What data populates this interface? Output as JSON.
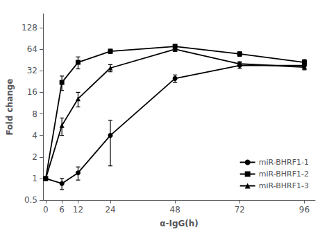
{
  "chart_data": {
    "type": "line",
    "xlabel": "α-IgG(h)",
    "ylabel": "Fold change",
    "x": [
      0,
      6,
      12,
      24,
      48,
      72,
      96
    ],
    "series": [
      {
        "name": "miR-BHRF1-1",
        "color": "#000000",
        "marker": "circle",
        "values": [
          1,
          0.85,
          1.2,
          4.0,
          25,
          38,
          38
        ],
        "yerr": [
          0.05,
          0.15,
          0.25,
          2.5,
          3.0,
          3.5,
          3.0
        ]
      },
      {
        "name": "miR-BHRF1-2",
        "color": "#000000",
        "marker": "square",
        "values": [
          1,
          22,
          42,
          60,
          70,
          55,
          42
        ],
        "yerr": [
          0.05,
          5.0,
          8.0,
          4.0,
          5.0,
          4.0,
          4.0
        ]
      },
      {
        "name": "miR-BHRF1-3",
        "color": "#000000",
        "marker": "triangle",
        "values": [
          1,
          5.5,
          13,
          35,
          64,
          40,
          36
        ],
        "yerr": [
          0.05,
          1.5,
          3.0,
          4.0,
          4.0,
          3.0,
          3.0
        ]
      }
    ],
    "xlim": [
      -1,
      100
    ],
    "xticks": [
      0,
      6,
      12,
      24,
      48,
      72,
      96
    ],
    "ylim": [
      0.5,
      200
    ],
    "yticks": [
      0.5,
      1,
      2,
      4,
      8,
      16,
      32,
      64,
      128
    ],
    "log": "y",
    "grid": false,
    "legend": "lower right"
  }
}
